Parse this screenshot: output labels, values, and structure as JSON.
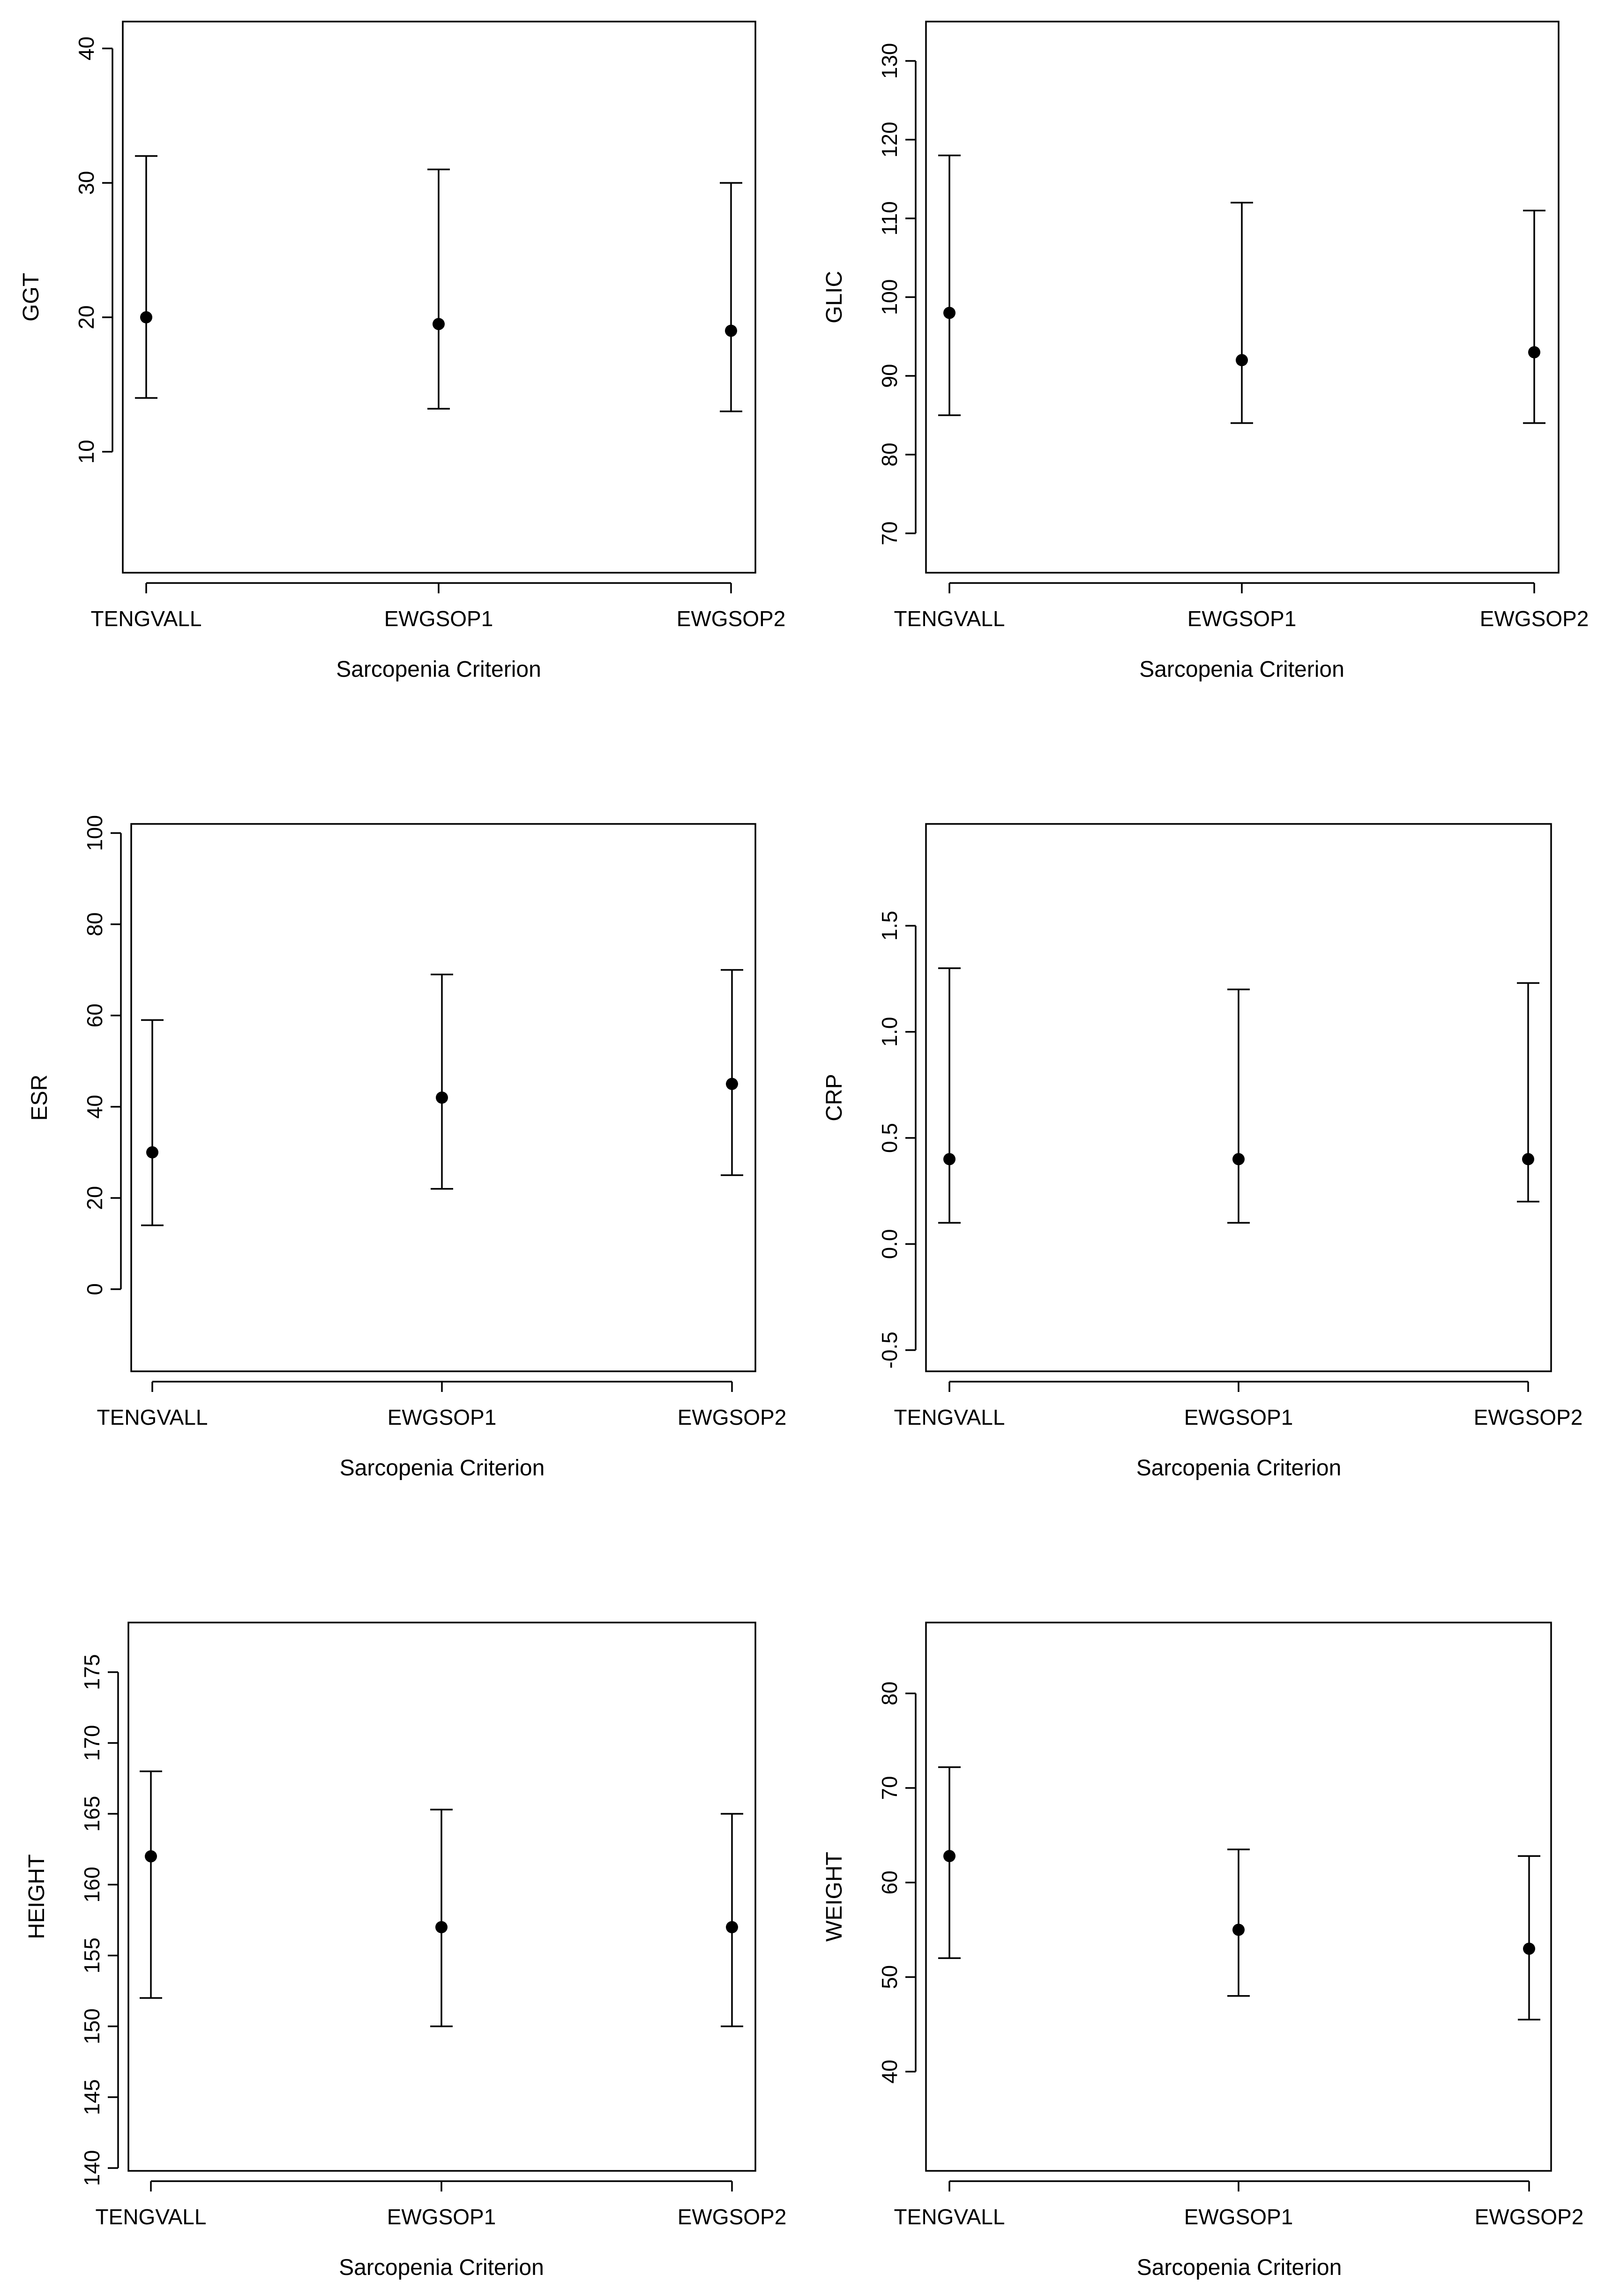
{
  "figure": {
    "xlabel": "Sarcopenia Criterion"
  },
  "chart_data": [
    {
      "type": "errorbar",
      "ylabel": "GGT",
      "xlabel": "Sarcopenia Criterion",
      "categories": [
        "TENGVALL",
        "EWGSOP1",
        "EWGSOP2"
      ],
      "values": [
        20,
        19.5,
        19
      ],
      "lower": [
        14,
        13.2,
        13
      ],
      "upper": [
        32,
        31,
        30
      ],
      "ylim": [
        1,
        42
      ],
      "yticks": [
        10,
        20,
        30,
        40
      ]
    },
    {
      "type": "errorbar",
      "ylabel": "GLIC",
      "xlabel": "Sarcopenia Criterion",
      "categories": [
        "TENGVALL",
        "EWGSOP1",
        "EWGSOP2"
      ],
      "values": [
        98,
        92,
        93
      ],
      "lower": [
        85,
        84,
        84
      ],
      "upper": [
        118,
        112,
        111
      ],
      "ylim": [
        65,
        135
      ],
      "yticks": [
        70,
        80,
        90,
        100,
        110,
        120,
        130
      ]
    },
    {
      "type": "errorbar",
      "ylabel": "ESR",
      "xlabel": "Sarcopenia Criterion",
      "categories": [
        "TENGVALL",
        "EWGSOP1",
        "EWGSOP2"
      ],
      "values": [
        30,
        42,
        45
      ],
      "lower": [
        14,
        22,
        25
      ],
      "upper": [
        59,
        69,
        70
      ],
      "ylim": [
        -18,
        102
      ],
      "yticks": [
        0,
        20,
        40,
        60,
        80,
        100
      ]
    },
    {
      "type": "errorbar",
      "ylabel": "CRP",
      "xlabel": "Sarcopenia Criterion",
      "categories": [
        "TENGVALL",
        "EWGSOP1",
        "EWGSOP2"
      ],
      "values": [
        0.4,
        0.4,
        0.4
      ],
      "lower": [
        0.1,
        0.1,
        0.2
      ],
      "upper": [
        1.3,
        1.2,
        1.23
      ],
      "ylim": [
        -0.6,
        1.98
      ],
      "yticks": [
        -0.5,
        0.0,
        0.5,
        1.0,
        1.5
      ],
      "ytick_labels": [
        "-0.5",
        "0.0",
        "0.5",
        "1.0",
        "1.5"
      ]
    },
    {
      "type": "errorbar",
      "ylabel": "HEIGHT",
      "xlabel": "Sarcopenia Criterion",
      "categories": [
        "TENGVALL",
        "EWGSOP1",
        "EWGSOP2"
      ],
      "values": [
        162,
        157,
        157
      ],
      "lower": [
        152,
        150,
        150
      ],
      "upper": [
        168,
        165.3,
        165
      ],
      "ylim": [
        139.8,
        178.5
      ],
      "yticks": [
        140,
        145,
        150,
        155,
        160,
        165,
        170,
        175
      ]
    },
    {
      "type": "errorbar",
      "ylabel": "WEIGHT",
      "xlabel": "Sarcopenia Criterion",
      "categories": [
        "TENGVALL",
        "EWGSOP1",
        "EWGSOP2"
      ],
      "values": [
        62.8,
        55,
        53
      ],
      "lower": [
        52,
        48,
        45.5
      ],
      "upper": [
        72.2,
        63.5,
        62.8
      ],
      "ylim": [
        29.5,
        87.5
      ],
      "yticks": [
        40,
        50,
        60,
        70,
        80
      ]
    }
  ]
}
